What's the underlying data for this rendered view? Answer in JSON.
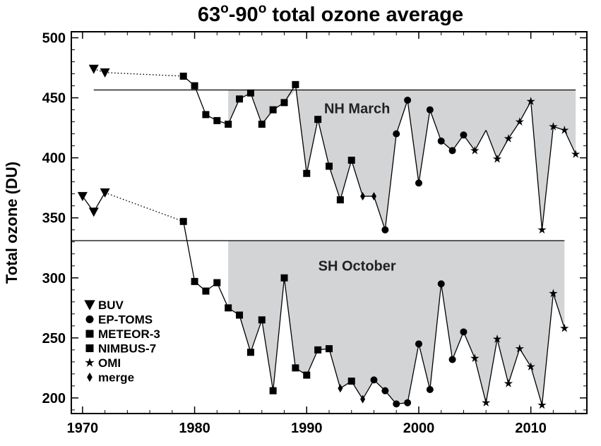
{
  "chart_data": {
    "type": "line",
    "title": {
      "p1": "63",
      "sup1": "o",
      "p2": "-90",
      "sup2": "o",
      "p3": " total ozone average"
    },
    "xlabel": "",
    "ylabel": "Total ozone (DU)",
    "xlim": [
      1969,
      2015
    ],
    "ylim": [
      187,
      505
    ],
    "xticks": [
      1970,
      1980,
      1990,
      2000,
      2010
    ],
    "yticks": [
      200,
      250,
      300,
      350,
      400,
      450,
      500
    ],
    "colors": {
      "fill": "#d3d4d6",
      "line": "#000000"
    },
    "legend": {
      "position": "lower-left",
      "entries": [
        {
          "label": "BUV",
          "marker": "triangle-down"
        },
        {
          "label": "EP-TOMS",
          "marker": "circle"
        },
        {
          "label": "METEOR-3",
          "marker": "square"
        },
        {
          "label": "NIMBUS-7",
          "marker": "square"
        },
        {
          "label": "OMI",
          "marker": "star"
        },
        {
          "label": "merge",
          "marker": "diamond"
        }
      ]
    },
    "series": [
      {
        "name": "NH March",
        "reference": 456.5,
        "reference_x": [
          1971,
          2014
        ],
        "shade_from": 1983,
        "points": [
          {
            "x": 1971,
            "y": 474,
            "m": "triangle-down",
            "dotted": true
          },
          {
            "x": 1972,
            "y": 471,
            "m": "triangle-down",
            "dotted": true
          },
          {
            "x": 1979,
            "y": 468,
            "m": "square",
            "dotted": true
          },
          {
            "x": 1980,
            "y": 460,
            "m": "square"
          },
          {
            "x": 1981,
            "y": 436,
            "m": "square"
          },
          {
            "x": 1982,
            "y": 431,
            "m": "square"
          },
          {
            "x": 1983,
            "y": 428,
            "m": "square"
          },
          {
            "x": 1984,
            "y": 449,
            "m": "square"
          },
          {
            "x": 1985,
            "y": 454,
            "m": "square"
          },
          {
            "x": 1986,
            "y": 428,
            "m": "square"
          },
          {
            "x": 1987,
            "y": 440,
            "m": "square"
          },
          {
            "x": 1988,
            "y": 446,
            "m": "square"
          },
          {
            "x": 1989,
            "y": 461,
            "m": "square"
          },
          {
            "x": 1990,
            "y": 387,
            "m": "square"
          },
          {
            "x": 1991,
            "y": 432,
            "m": "square"
          },
          {
            "x": 1992,
            "y": 393,
            "m": "square"
          },
          {
            "x": 1993,
            "y": 365,
            "m": "square"
          },
          {
            "x": 1994,
            "y": 398,
            "m": "square"
          },
          {
            "x": 1995,
            "y": 368,
            "m": "diamond"
          },
          {
            "x": 1996,
            "y": 368,
            "m": "diamond"
          },
          {
            "x": 1997,
            "y": 340,
            "m": "circle"
          },
          {
            "x": 1998,
            "y": 420,
            "m": "circle"
          },
          {
            "x": 1999,
            "y": 448,
            "m": "circle"
          },
          {
            "x": 2000,
            "y": 379,
            "m": "circle"
          },
          {
            "x": 2001,
            "y": 440,
            "m": "circle"
          },
          {
            "x": 2002,
            "y": 414,
            "m": "circle"
          },
          {
            "x": 2003,
            "y": 406,
            "m": "circle"
          },
          {
            "x": 2004,
            "y": 419,
            "m": "circle"
          },
          {
            "x": 2005,
            "y": 406,
            "m": "star"
          },
          {
            "x": 2006,
            "y": 423,
            "m": "none"
          },
          {
            "x": 2007,
            "y": 399,
            "m": "star"
          },
          {
            "x": 2008,
            "y": 416,
            "m": "star"
          },
          {
            "x": 2009,
            "y": 430,
            "m": "star"
          },
          {
            "x": 2010,
            "y": 447,
            "m": "star"
          },
          {
            "x": 2011,
            "y": 340,
            "m": "star"
          },
          {
            "x": 2012,
            "y": 426,
            "m": "star"
          },
          {
            "x": 2013,
            "y": 423,
            "m": "star"
          },
          {
            "x": 2014,
            "y": 403,
            "m": "star"
          }
        ]
      },
      {
        "name": "SH October",
        "reference": 331,
        "reference_x": [
          1969,
          2013
        ],
        "shade_from": 1983,
        "points": [
          {
            "x": 1970,
            "y": 368,
            "m": "triangle-down"
          },
          {
            "x": 1971,
            "y": 355,
            "m": "triangle-down"
          },
          {
            "x": 1972,
            "y": 371,
            "m": "triangle-down",
            "dotted": true
          },
          {
            "x": 1979,
            "y": 347,
            "m": "square",
            "dotted": true
          },
          {
            "x": 1980,
            "y": 297,
            "m": "square"
          },
          {
            "x": 1981,
            "y": 289,
            "m": "square"
          },
          {
            "x": 1982,
            "y": 296,
            "m": "square"
          },
          {
            "x": 1983,
            "y": 275,
            "m": "square"
          },
          {
            "x": 1984,
            "y": 269,
            "m": "square"
          },
          {
            "x": 1985,
            "y": 238,
            "m": "square"
          },
          {
            "x": 1986,
            "y": 265,
            "m": "square"
          },
          {
            "x": 1987,
            "y": 206,
            "m": "square"
          },
          {
            "x": 1988,
            "y": 300,
            "m": "square"
          },
          {
            "x": 1989,
            "y": 225,
            "m": "square"
          },
          {
            "x": 1990,
            "y": 219,
            "m": "square"
          },
          {
            "x": 1991,
            "y": 240,
            "m": "square"
          },
          {
            "x": 1992,
            "y": 241,
            "m": "square"
          },
          {
            "x": 1993,
            "y": 208,
            "m": "diamond"
          },
          {
            "x": 1994,
            "y": 214,
            "m": "square"
          },
          {
            "x": 1995,
            "y": 199,
            "m": "diamond"
          },
          {
            "x": 1996,
            "y": 215,
            "m": "circle"
          },
          {
            "x": 1997,
            "y": 206,
            "m": "circle"
          },
          {
            "x": 1998,
            "y": 195,
            "m": "circle"
          },
          {
            "x": 1999,
            "y": 196,
            "m": "circle"
          },
          {
            "x": 2000,
            "y": 245,
            "m": "circle"
          },
          {
            "x": 2001,
            "y": 207,
            "m": "circle"
          },
          {
            "x": 2002,
            "y": 295,
            "m": "circle"
          },
          {
            "x": 2003,
            "y": 232,
            "m": "circle"
          },
          {
            "x": 2004,
            "y": 255,
            "m": "circle"
          },
          {
            "x": 2005,
            "y": 233,
            "m": "star"
          },
          {
            "x": 2006,
            "y": 196,
            "m": "star"
          },
          {
            "x": 2007,
            "y": 249,
            "m": "star"
          },
          {
            "x": 2008,
            "y": 212,
            "m": "star"
          },
          {
            "x": 2009,
            "y": 241,
            "m": "star"
          },
          {
            "x": 2010,
            "y": 226,
            "m": "star"
          },
          {
            "x": 2011,
            "y": 194,
            "m": "star"
          },
          {
            "x": 2012,
            "y": 287,
            "m": "star"
          },
          {
            "x": 2013,
            "y": 258,
            "m": "star"
          }
        ]
      }
    ],
    "annotations": [
      {
        "text": "NH March",
        "x": 1994.5,
        "y": 437
      },
      {
        "text": "SH October",
        "x": 1994.5,
        "y": 306
      }
    ]
  }
}
